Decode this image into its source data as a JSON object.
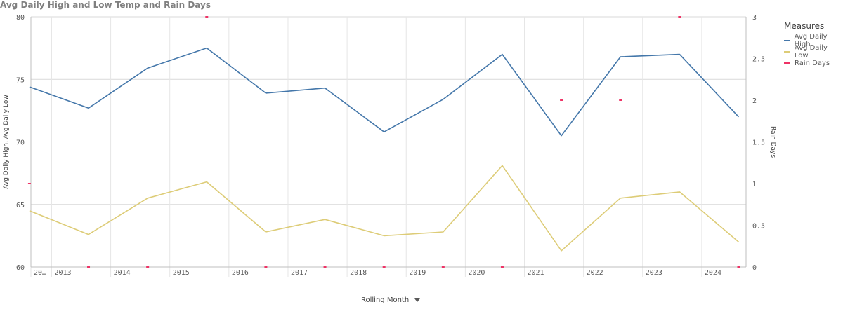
{
  "chart_data": {
    "type": "line",
    "title": "Avg Daily High and Low Temp and Rain Days",
    "xlabel": "Rolling Month",
    "ylabel": "Avg Daily High, Avg Daily Low",
    "y2label": "Rain Days",
    "ylim": [
      60,
      80
    ],
    "y2lim": [
      0,
      3
    ],
    "yticks": [
      60,
      65,
      70,
      75,
      80
    ],
    "y2ticks": [
      "0",
      "0.5",
      "1",
      "1.5",
      "2",
      "2.5",
      "3"
    ],
    "year_labels": [
      "20…",
      "2013",
      "2014",
      "2015",
      "2016",
      "2017",
      "2018",
      "2019",
      "2020",
      "2021",
      "2022",
      "2023",
      "2024"
    ],
    "x": [
      "2012-08",
      "2013-08",
      "2014-08",
      "2015-08",
      "2016-08",
      "2017-08",
      "2018-08",
      "2019-08",
      "2020-08",
      "2021-08",
      "2022-08",
      "2023-08",
      "2024-08"
    ],
    "legend_title": "Measures",
    "legend_position": "right",
    "series": [
      {
        "name": "Avg Daily High",
        "axis": "left",
        "color": "#4477aa",
        "values": [
          74.4,
          72.7,
          75.9,
          77.5,
          73.9,
          74.3,
          70.8,
          73.4,
          77.0,
          70.5,
          76.8,
          77.0,
          72.0
        ]
      },
      {
        "name": "Avg Daily Low",
        "axis": "left",
        "color": "#ddcc77",
        "values": [
          64.5,
          62.6,
          65.5,
          66.8,
          62.8,
          63.8,
          62.5,
          62.8,
          68.1,
          61.3,
          65.5,
          66.0,
          62.0
        ]
      },
      {
        "name": "Rain Days",
        "axis": "right",
        "color": "#ee3366",
        "style": "marker",
        "values": [
          1,
          0,
          0,
          3,
          0,
          0,
          0,
          0,
          0,
          2,
          2,
          3,
          0
        ]
      }
    ]
  }
}
